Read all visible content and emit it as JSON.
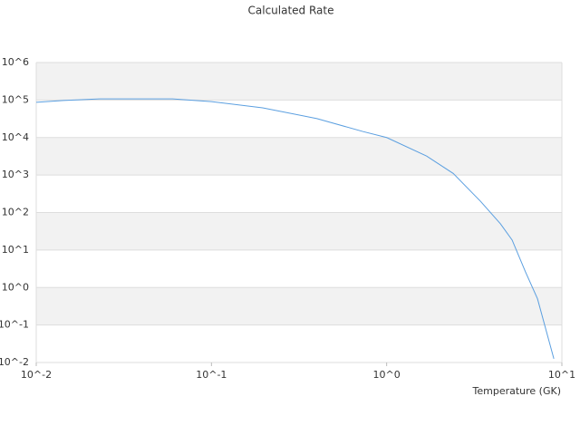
{
  "chart_data": {
    "type": "line",
    "title": "Calculated Rate",
    "xlabel": "Temperature (GK)",
    "x": [
      0.01,
      0.0143,
      0.023,
      0.06,
      0.1,
      0.196,
      0.4,
      0.73,
      1,
      1.69,
      2.4,
      3.43,
      4.46,
      5.2,
      6.2,
      7.26,
      9.0
    ],
    "values": [
      87000,
      97000,
      107000,
      107000,
      91000,
      62000,
      32000,
      14500,
      10000,
      3200,
      1100,
      200,
      50,
      18.5,
      2.6,
      0.5,
      0.0126
    ],
    "color": "#5b9fe0",
    "xscale": "log",
    "yscale": "log",
    "xlim": [
      0.01,
      10
    ],
    "xticks": [
      {
        "value": 0.01,
        "label": "10^-2"
      },
      {
        "value": 0.1,
        "label": "10^-1"
      },
      {
        "value": 1,
        "label": "10^0"
      },
      {
        "value": 10,
        "label": "10^1"
      }
    ],
    "ylim": [
      0.01,
      1000000
    ],
    "yticks": [
      {
        "value": 1000000,
        "label": "10^6"
      },
      {
        "value": 100000,
        "label": "10^5"
      },
      {
        "value": 10000,
        "label": "10^4"
      },
      {
        "value": 1000,
        "label": "10^3"
      },
      {
        "value": 100,
        "label": "10^2"
      },
      {
        "value": 10,
        "label": "10^1"
      },
      {
        "value": 1,
        "label": "10^0"
      },
      {
        "value": 0.1,
        "label": "10^-1"
      },
      {
        "value": 0.01,
        "label": "10^-2"
      }
    ],
    "grid": true
  }
}
